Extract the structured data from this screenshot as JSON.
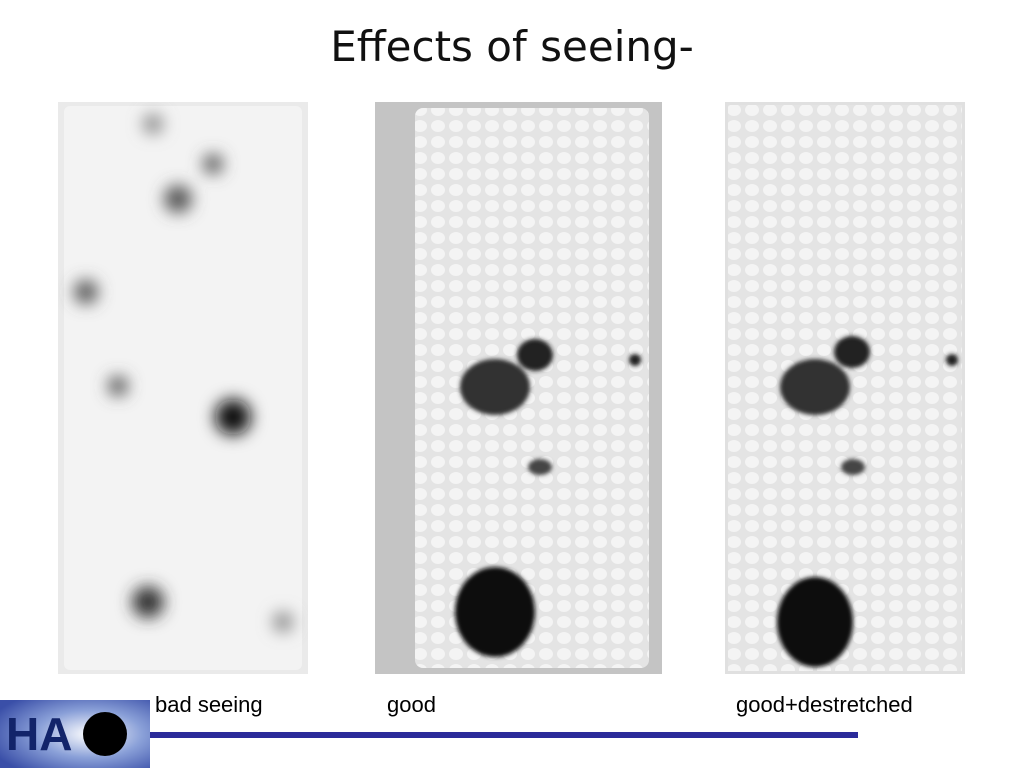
{
  "slide": {
    "title": "Effects of seeing-",
    "captions": [
      "bad seeing",
      "good",
      "good+destretched"
    ],
    "logo": "HA"
  }
}
